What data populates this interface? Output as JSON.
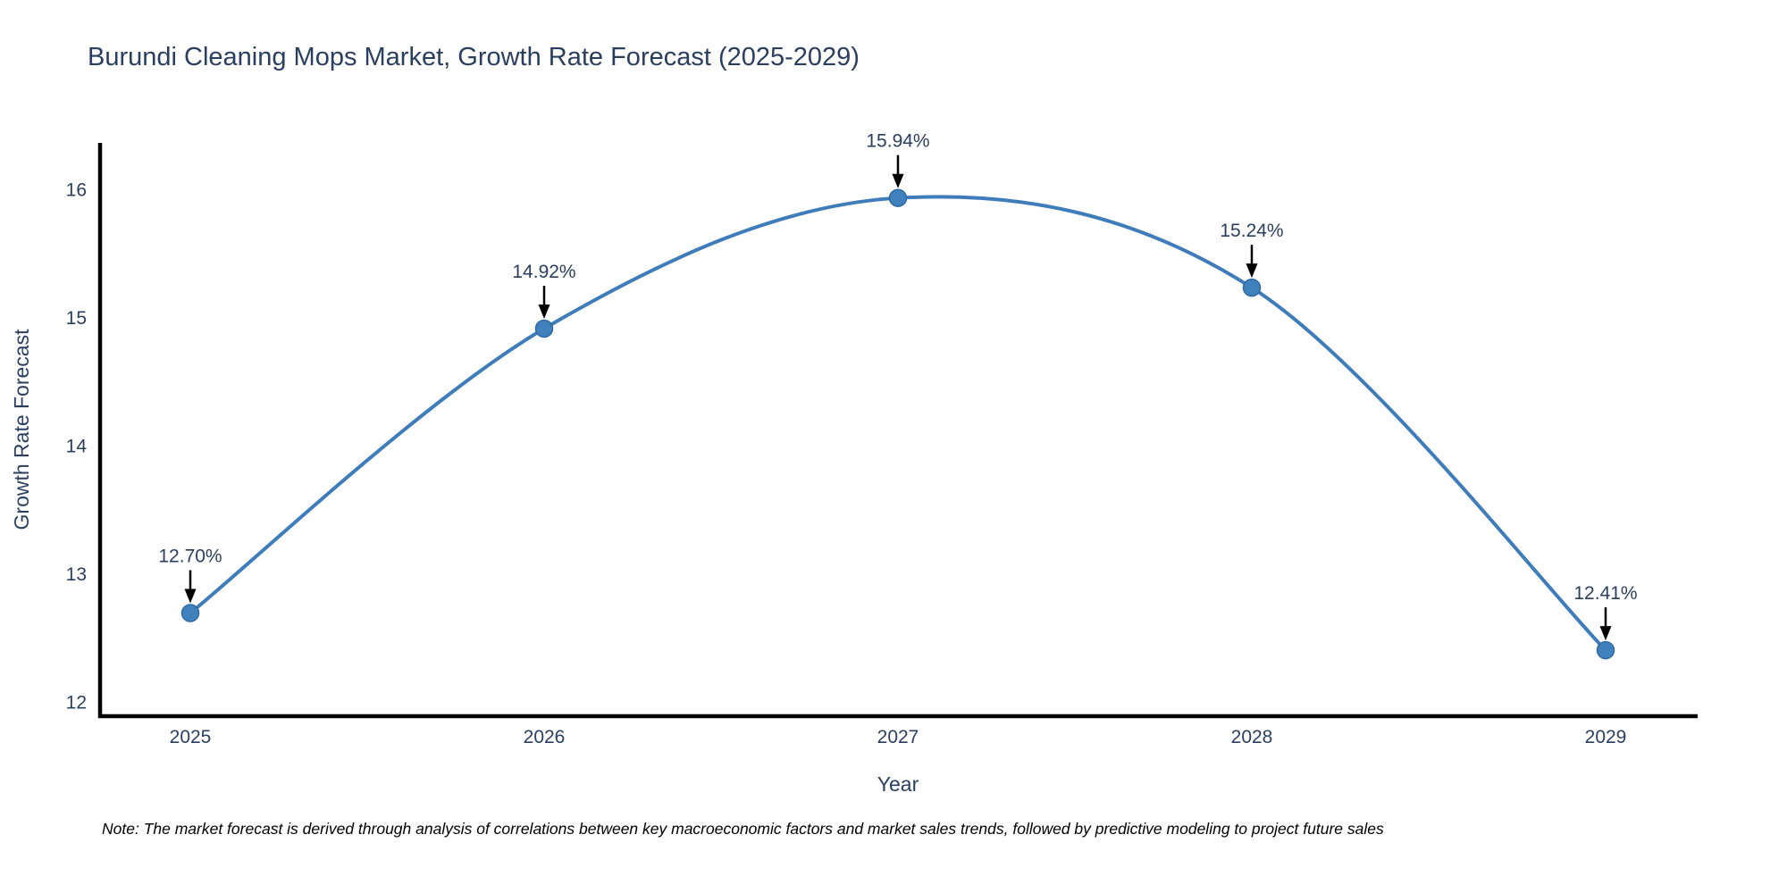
{
  "title": "Burundi Cleaning Mops Market, Growth Rate Forecast (2025-2029)",
  "note": "Note: The market forecast is derived through analysis of correlations between key macroeconomic factors and market sales trends, followed by predictive modeling to project future sales",
  "chart_data": {
    "type": "line",
    "title": "Burundi Cleaning Mops Market, Growth Rate Forecast (2025-2029)",
    "x": [
      "2025",
      "2026",
      "2027",
      "2028",
      "2029"
    ],
    "series": [
      {
        "name": "Growth Rate Forecast",
        "values": [
          12.7,
          14.92,
          15.94,
          15.24,
          12.41
        ]
      }
    ],
    "point_labels": [
      "12.70%",
      "14.92%",
      "15.94%",
      "15.24%",
      "12.41%"
    ],
    "xlabel": "Year",
    "ylabel": "Growth Rate Forecast",
    "yticks": [
      12,
      13,
      14,
      15,
      16
    ],
    "ylim": [
      11.895,
      16.37
    ],
    "line_shape": "spline",
    "grid": false,
    "legend_position": "none",
    "colors": {
      "line": "#3e7cba",
      "marker_fill": "#3f80bd",
      "marker_edge": "#2f6ba3",
      "axis_line": "#000000",
      "text": "#2a3f5f",
      "annotation_text": "#2a3f5f",
      "annotation_arrow": "#000000",
      "note_text": "#000000",
      "background": "#ffffff"
    }
  }
}
